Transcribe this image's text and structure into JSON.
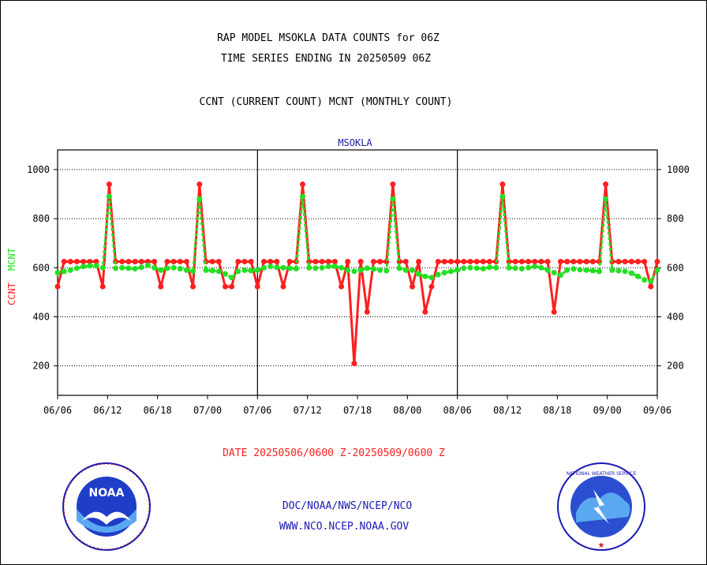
{
  "header": {
    "title_line1": "RAP MODEL MSOKLA DATA COUNTS for 06Z",
    "title_line2": "TIME SERIES ENDING IN 20250509 06Z",
    "subtitle": "CCNT (CURRENT COUNT) MCNT (MONTHLY COUNT)"
  },
  "footer": {
    "date_range": "DATE 20250506/0600 Z-20250509/0600 Z",
    "org_line": "DOC/NOAA/NWS/NCEP/NCO",
    "url_line": "WWW.NCO.NCEP.NOAA.GOV",
    "noaa_logo_text": "NOAA",
    "nws_logo_text": "NATIONAL WEATHER SERVICE"
  },
  "colors": {
    "ccnt": "#ff1f1f",
    "mcnt": "#22e022",
    "title": "#000000",
    "panel_label": "#1a1aa0",
    "date_text": "#ff1f1f",
    "org_text": "#1a1ab4"
  },
  "chart_data": {
    "type": "line",
    "panel_label": "MSOKLA",
    "ylabel_ccnt": "CCNT",
    "ylabel_mcnt": "MCNT",
    "ylim": [
      80,
      1080
    ],
    "yticks": [
      200,
      400,
      600,
      800,
      1000
    ],
    "grid": true,
    "xticks": [
      "06/06",
      "06/12",
      "06/18",
      "07/00",
      "07/06",
      "07/12",
      "07/18",
      "08/00",
      "08/06",
      "08/12",
      "08/18",
      "09/00",
      "09/06"
    ],
    "series": [
      {
        "name": "CCNT",
        "values": [
          523,
          625,
          625,
          625,
          625,
          625,
          625,
          523,
          940,
          625,
          625,
          625,
          625,
          625,
          625,
          625,
          523,
          625,
          625,
          625,
          625,
          523,
          940,
          625,
          625,
          625,
          523,
          523,
          625,
          625,
          625,
          523,
          625,
          625,
          625,
          523,
          625,
          625,
          940,
          625,
          625,
          625,
          625,
          625,
          523,
          625,
          210,
          625,
          420,
          625,
          625,
          625,
          940,
          625,
          625,
          523,
          625,
          420,
          523,
          625,
          625,
          625,
          625,
          625,
          625,
          625,
          625,
          625,
          625,
          940,
          625,
          625,
          625,
          625,
          625,
          625,
          625,
          420,
          625,
          625,
          625,
          625,
          625,
          625,
          625,
          940,
          625,
          625,
          625,
          625,
          625,
          625,
          523,
          625
        ]
      },
      {
        "name": "MCNT",
        "values": [
          580,
          585,
          590,
          598,
          605,
          608,
          608,
          600,
          890,
          598,
          600,
          598,
          596,
          602,
          610,
          600,
          590,
          598,
          600,
          596,
          590,
          586,
          880,
          590,
          588,
          585,
          575,
          560,
          585,
          590,
          588,
          590,
          600,
          605,
          602,
          600,
          598,
          596,
          890,
          600,
          598,
          600,
          605,
          606,
          600,
          590,
          585,
          590,
          598,
          595,
          590,
          588,
          880,
          598,
          590,
          590,
          575,
          565,
          560,
          572,
          580,
          585,
          590,
          598,
          600,
          598,
          596,
          602,
          600,
          890,
          600,
          598,
          596,
          600,
          605,
          600,
          590,
          580,
          570,
          590,
          595,
          592,
          590,
          588,
          585,
          880,
          590,
          588,
          585,
          578,
          565,
          550,
          545,
          590
        ]
      }
    ]
  }
}
